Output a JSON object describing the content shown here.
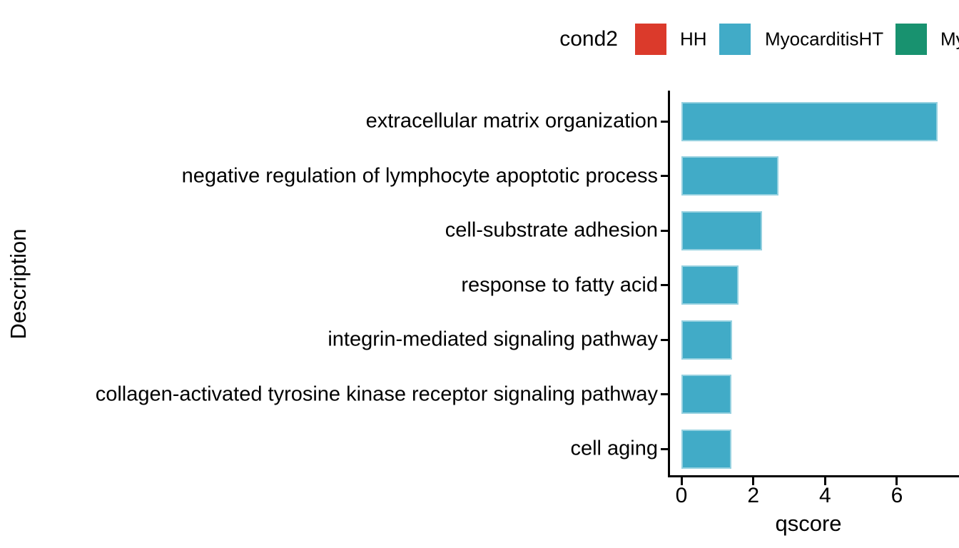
{
  "legend": {
    "title": "cond2",
    "items": [
      {
        "label": "HH",
        "color": "#DB3A2B"
      },
      {
        "label": "MyocarditisHT",
        "color": "#41ABC7"
      },
      {
        "label": "My",
        "color": "#18926F",
        "clipped_at_right_edge": true
      }
    ]
  },
  "chart_data": {
    "type": "bar",
    "orientation": "horizontal",
    "title": "",
    "xlabel": "qscore",
    "ylabel": "Description",
    "x_ticks": [
      0,
      2,
      4,
      6
    ],
    "xlim_visible": [
      0,
      7.7
    ],
    "grid": false,
    "legend_position": "top",
    "bar_color": "#41ABC7",
    "series_name": "MyocarditisHT",
    "categories": [
      "extracellular matrix organization",
      "negative regulation of lymphocyte apoptotic process",
      "cell-substrate adhesion",
      "response to fatty acid",
      "integrin-mediated signaling pathway",
      "collagen-activated tyrosine kinase receptor signaling pathway",
      "cell aging"
    ],
    "values": [
      7.13,
      2.7,
      2.24,
      1.59,
      1.41,
      1.39,
      1.39
    ]
  }
}
